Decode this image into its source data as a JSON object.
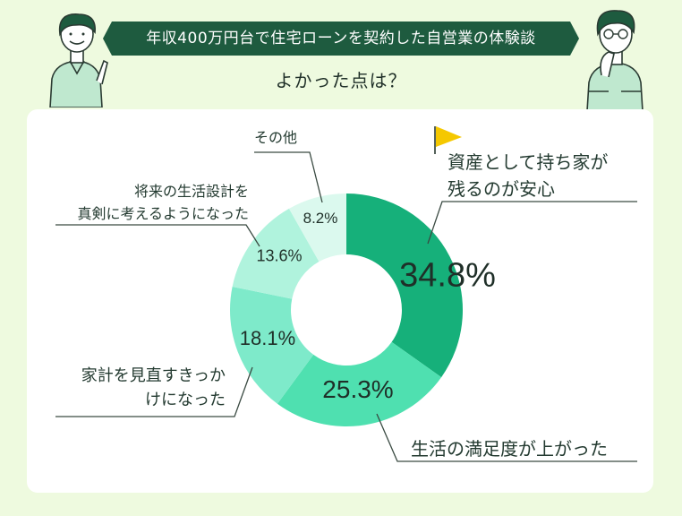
{
  "header": {
    "title": "年収400万円台で住宅ローンを契約した自営業の体験談",
    "subtitle": "よかった点は？"
  },
  "colors": {
    "background": "#eefadf",
    "banner": "#1e5b3f",
    "card": "#ffffff",
    "leader_line": "#3a4a42"
  },
  "chart_data": {
    "type": "pie",
    "donut": true,
    "categories": [
      "資産として持ち家が残るのが安心",
      "生活の満足度が上がった",
      "家計を見直すきっかけになった",
      "将来の生活設計を真剣に考えるようになった",
      "その他"
    ],
    "label_lines": [
      [
        "資産として持ち家が",
        "残るのが安心"
      ],
      [
        "生活の満足度が上がった"
      ],
      [
        "家計を見直すきっか",
        "けになった"
      ],
      [
        "将来の生活設計を",
        "真剣に考えるようになった"
      ],
      [
        "その他"
      ]
    ],
    "values": [
      34.8,
      25.3,
      18.1,
      13.6,
      8.2
    ],
    "value_labels": [
      "34.8%",
      "25.3%",
      "18.1%",
      "13.6%",
      "8.2%"
    ],
    "colors": [
      "#16b07a",
      "#4fe0b0",
      "#7eeaca",
      "#b0f3dd",
      "#dbf9ee"
    ],
    "legend": "none",
    "title": ""
  }
}
